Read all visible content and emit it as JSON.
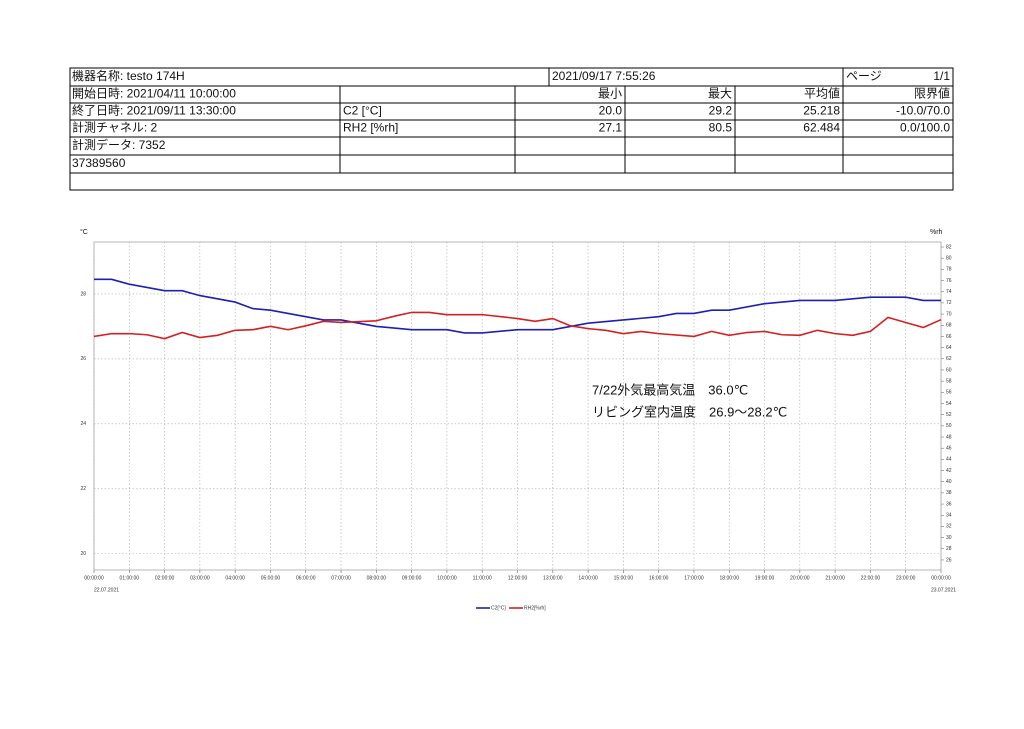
{
  "header": {
    "device": "機器名称: testo 174H",
    "printed": "2021/09/17 7:55:26",
    "page_label": "ページ",
    "page": "1/1"
  },
  "columns": [
    "最小",
    "最大",
    "平均値",
    "限界値"
  ],
  "info": [
    "開始日時: 2021/04/11 10:00:00",
    "終了日時: 2021/09/11 13:30:00",
    "計測チャネル: 2",
    "計測データ: 7352",
    "37389560"
  ],
  "channels": [
    {
      "name": "C2 [°C]",
      "min": "20.0",
      "max": "29.2",
      "avg": "25.218",
      "limit": "-10.0/70.0"
    },
    {
      "name": "RH2 [%rh]",
      "min": "27.1",
      "max": "80.5",
      "avg": "62.484",
      "limit": "0.0/100.0"
    }
  ],
  "chart_data": {
    "type": "line",
    "y_unit": "°C",
    "y2_unit": "%rh",
    "annotations": [
      "7/22外気最高気温　36.0℃",
      "リビング室内温度　26.9～28.2℃"
    ],
    "x_dates": [
      "22.07.2021",
      "23.07.2021"
    ],
    "xlim": [
      0,
      24
    ],
    "xticks": [
      {
        "value": 0,
        "label": "00:00:00"
      },
      {
        "value": 1,
        "label": "01:00:00"
      },
      {
        "value": 2,
        "label": "02:00:00"
      },
      {
        "value": 3,
        "label": "03:00:00"
      },
      {
        "value": 4,
        "label": "04:00:00"
      },
      {
        "value": 5,
        "label": "05:00:00"
      },
      {
        "value": 6,
        "label": "06:00:00"
      },
      {
        "value": 7,
        "label": "07:00:00"
      },
      {
        "value": 8,
        "label": "08:00:00"
      },
      {
        "value": 9,
        "label": "09:00:00"
      },
      {
        "value": 10,
        "label": "10:00:00"
      },
      {
        "value": 11,
        "label": "11:00:00"
      },
      {
        "value": 12,
        "label": "12:00:00"
      },
      {
        "value": 13,
        "label": "13:00:00"
      },
      {
        "value": 14,
        "label": "14:00:00"
      },
      {
        "value": 15,
        "label": "15:00:00"
      },
      {
        "value": 16,
        "label": "16:00:00"
      },
      {
        "value": 17,
        "label": "17:00:00"
      },
      {
        "value": 18,
        "label": "18:00:00"
      },
      {
        "value": 19,
        "label": "19:00:00"
      },
      {
        "value": 20,
        "label": "20:00:00"
      },
      {
        "value": 21,
        "label": "21:00:00"
      },
      {
        "value": 22,
        "label": "22:00:00"
      },
      {
        "value": 23,
        "label": "23:00:00"
      },
      {
        "value": 24,
        "label": "00:00:00"
      }
    ],
    "ylim": [
      19.5,
      29.6
    ],
    "yticks": [
      20,
      22,
      24,
      26,
      28
    ],
    "y2lim": [
      24.2,
      82.9
    ],
    "y2ticks": [
      26,
      28,
      30,
      32,
      34,
      36,
      38,
      40,
      42,
      44,
      46,
      48,
      50,
      52,
      54,
      56,
      58,
      60,
      62,
      64,
      66,
      68,
      70,
      72,
      74,
      76,
      78,
      80,
      82
    ],
    "grid": true,
    "series": [
      {
        "name": "C2[°C]",
        "color": "#1f1fb4",
        "x": [
          0,
          0.5,
          1,
          2,
          2.5,
          3,
          4,
          4.5,
          5,
          6,
          6.5,
          7,
          8,
          9,
          10,
          10.5,
          11,
          12,
          13,
          13.5,
          14,
          15,
          16,
          16.5,
          17,
          17.5,
          18,
          19,
          20,
          21,
          22,
          23,
          23.5,
          24
        ],
        "values": [
          28.45,
          28.45,
          28.3,
          28.1,
          28.1,
          27.95,
          27.75,
          27.55,
          27.5,
          27.3,
          27.2,
          27.2,
          27.0,
          26.9,
          26.9,
          26.8,
          26.8,
          26.9,
          26.9,
          27.0,
          27.1,
          27.2,
          27.3,
          27.4,
          27.4,
          27.5,
          27.5,
          27.7,
          27.8,
          27.8,
          27.9,
          27.9,
          27.8,
          27.8
        ]
      },
      {
        "name": "RH2[%rh]",
        "color": "#d42020",
        "axis": "y2",
        "x": [
          0,
          0.5,
          1,
          1.5,
          2,
          2.5,
          3,
          3.5,
          4,
          4.5,
          5,
          5.5,
          6,
          6.5,
          7,
          8,
          8.5,
          9,
          9.5,
          10,
          11,
          12,
          12.5,
          13,
          13.5,
          14,
          14.5,
          15,
          15.5,
          16,
          17,
          17.5,
          18,
          18.5,
          19,
          19.5,
          20,
          20.5,
          21,
          21.5,
          22,
          22.5,
          23,
          23.5,
          24
        ],
        "values": [
          66.0,
          66.5,
          66.5,
          66.3,
          65.6,
          66.7,
          65.8,
          66.2,
          67.1,
          67.2,
          67.8,
          67.2,
          67.9,
          68.7,
          68.5,
          68.8,
          69.6,
          70.3,
          70.3,
          69.9,
          69.9,
          69.2,
          68.7,
          69.2,
          67.9,
          67.4,
          67.1,
          66.5,
          66.9,
          66.5,
          66.0,
          66.9,
          66.2,
          66.7,
          66.9,
          66.3,
          66.2,
          67.1,
          66.5,
          66.2,
          66.9,
          69.4,
          68.5,
          67.6,
          69.0
        ]
      }
    ]
  }
}
